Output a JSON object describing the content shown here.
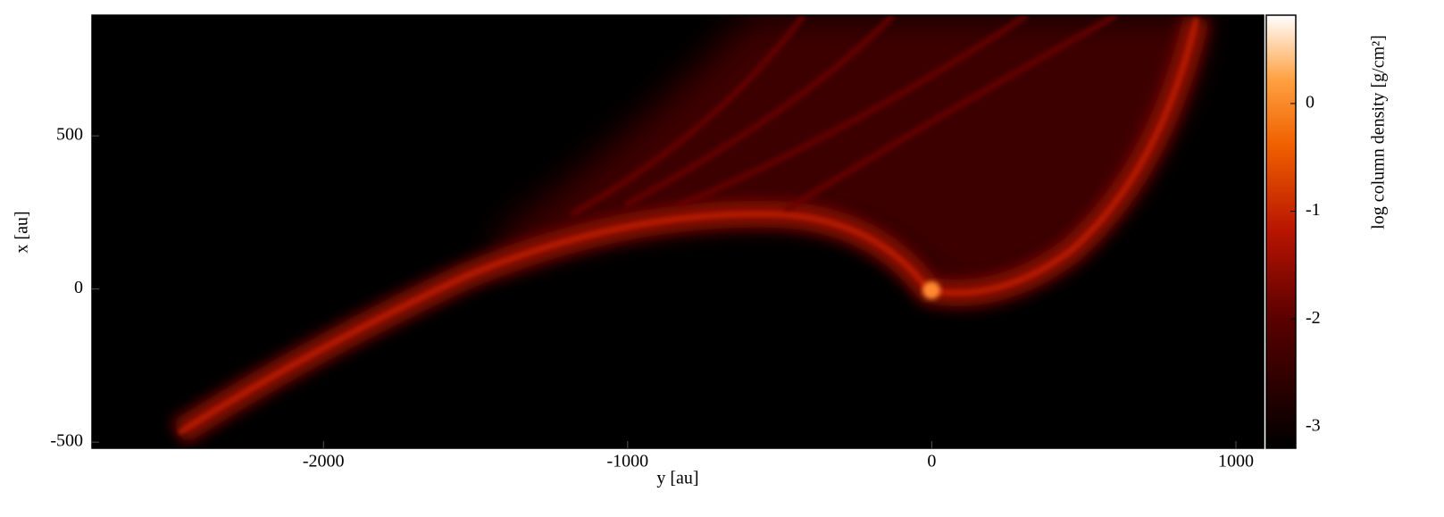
{
  "chart_data": {
    "type": "image",
    "xlabel": "y [au]",
    "ylabel": "x [au]",
    "xlim": [
      -2761,
      1091
    ],
    "xticks": [
      -2000,
      -1000,
      0,
      1000
    ],
    "ylim": [
      -520,
      894
    ],
    "yticks": [
      -500,
      0,
      500
    ],
    "colorbar": {
      "label": "log column density [g/cm²]",
      "lim": [
        -3.2,
        0.82
      ],
      "ticks": [
        0,
        -1,
        -2,
        -3
      ]
    }
  }
}
